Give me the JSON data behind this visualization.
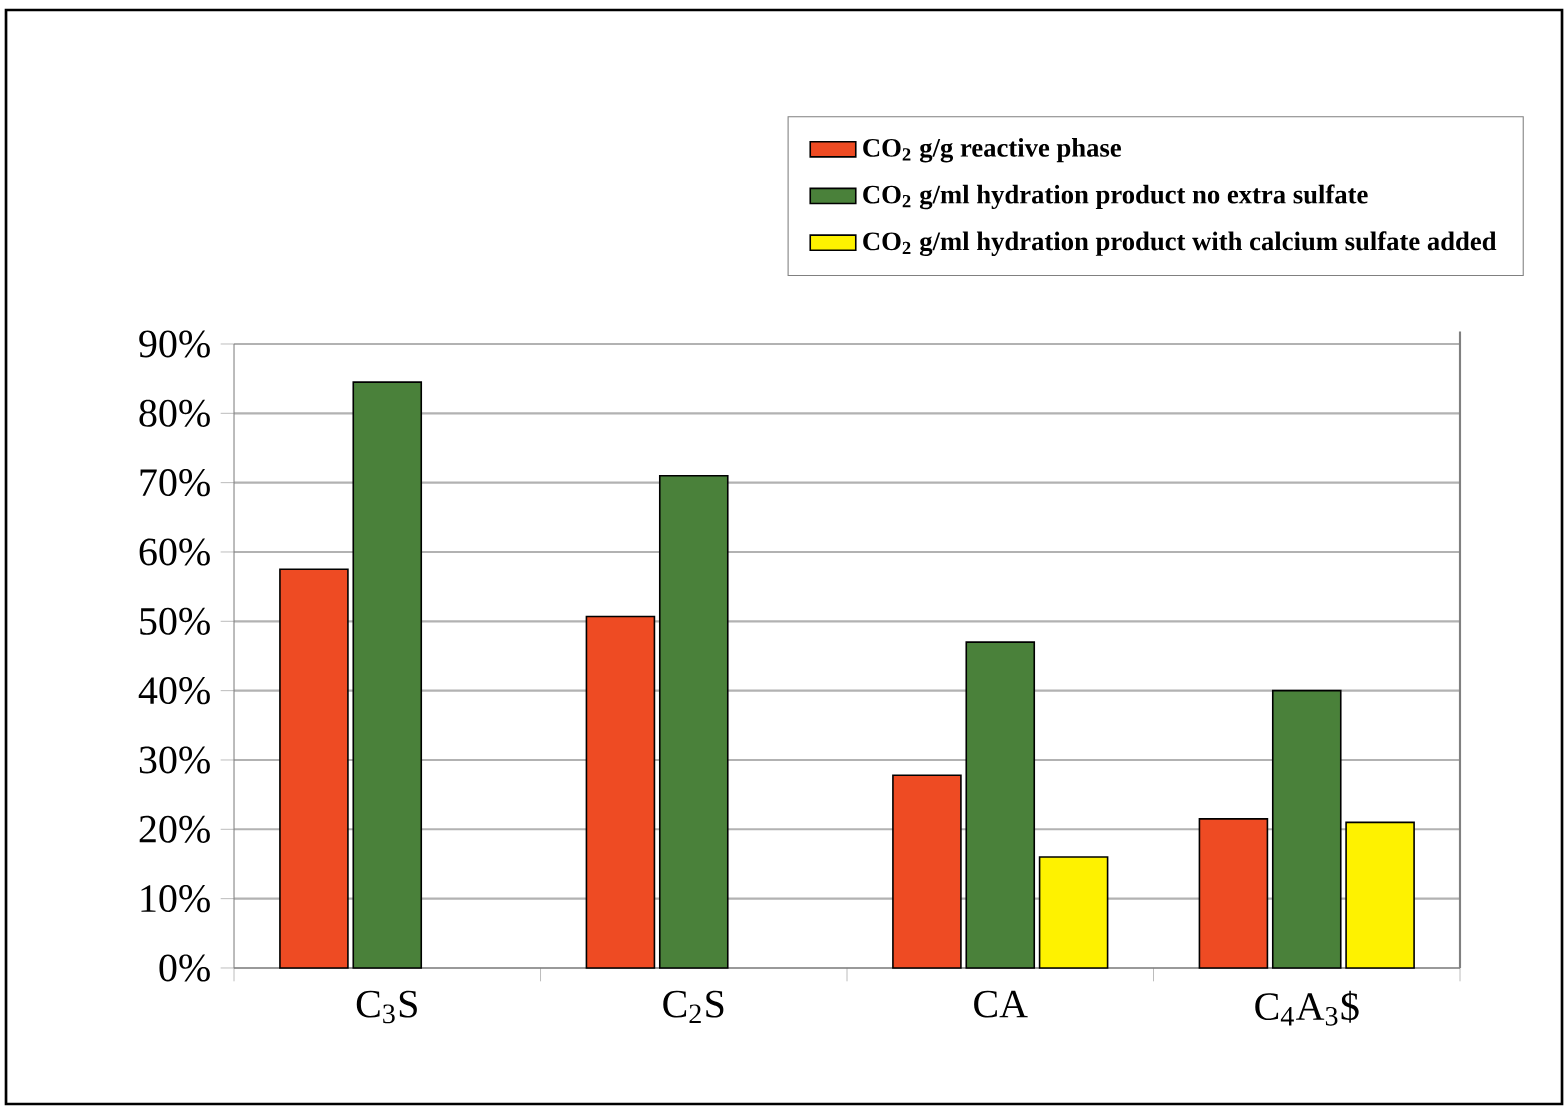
{
  "chart_data": {
    "type": "bar",
    "categories": [
      "C$_{3}$S",
      "C$_{2}$S",
      "CA",
      "C$_{4}$A$_{3}$$"
    ],
    "series": [
      {
        "name": "CO$_{2}$ g/g reactive phase",
        "color": "#ee4b23",
        "values": [
          57.5,
          50.7,
          27.8,
          21.5
        ]
      },
      {
        "name": "CO$_{2}$ g/ml hydration product no extra sulfate",
        "color": "#4a813a",
        "values": [
          84.5,
          71,
          47,
          40
        ]
      },
      {
        "name": "CO$_{2}$ g/ml hydration product with calcium sulfate added",
        "color": "#fef200",
        "values": [
          null,
          null,
          16,
          21
        ]
      }
    ],
    "ylim": [
      0,
      90
    ],
    "yticks": [
      {
        "value": 0,
        "label": "0%"
      },
      {
        "value": 10,
        "label": "10%"
      },
      {
        "value": 20,
        "label": "20%"
      },
      {
        "value": 30,
        "label": "30%"
      },
      {
        "value": 40,
        "label": "40%"
      },
      {
        "value": 50,
        "label": "50%"
      },
      {
        "value": 60,
        "label": "60%"
      },
      {
        "value": 70,
        "label": "70%"
      },
      {
        "value": 80,
        "label": "80%"
      },
      {
        "value": 90,
        "label": "90%"
      }
    ],
    "grid": "y",
    "legend": "top"
  }
}
